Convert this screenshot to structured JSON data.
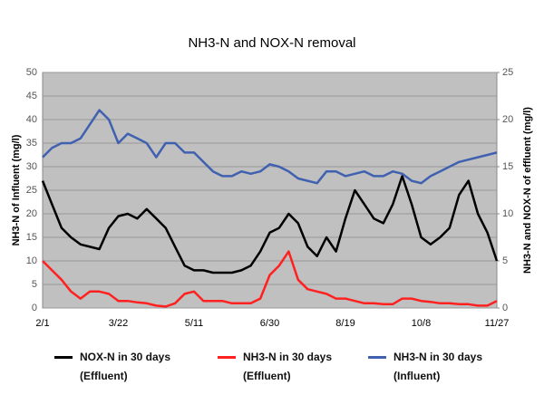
{
  "chart_data": {
    "type": "line",
    "title": "NH3-N and NOX-N removal",
    "y_label": "NH3-N of Influent (mg/l)",
    "y2_label": "NH3-N and NOX-N of effluent (mg/l)",
    "categories": [
      "2/1",
      null,
      null,
      null,
      null,
      null,
      null,
      null,
      "3/22",
      null,
      null,
      null,
      null,
      null,
      null,
      null,
      "5/11",
      null,
      null,
      null,
      null,
      null,
      null,
      null,
      "6/30",
      null,
      null,
      null,
      null,
      null,
      null,
      null,
      "8/19",
      null,
      null,
      null,
      null,
      null,
      null,
      null,
      "10/8",
      null,
      null,
      null,
      null,
      null,
      null,
      null,
      "11/27"
    ],
    "ylim": [
      0,
      50
    ],
    "yticks": [
      0,
      5,
      10,
      15,
      20,
      25,
      30,
      35,
      40,
      45,
      50
    ],
    "y2lim": [
      0,
      25
    ],
    "y2ticks": [
      0,
      5,
      10,
      15,
      20,
      25
    ],
    "grid": true,
    "legend": "bottom",
    "series": [
      {
        "name": "NOX-N in 30 days\n(Effluent)",
        "color": "#000000",
        "axis": "y2",
        "values": [
          13.5,
          11,
          8.5,
          7.5,
          6.75,
          6.5,
          6.25,
          8.5,
          9.75,
          10,
          9.5,
          10.5,
          9.5,
          8.5,
          6.5,
          4.5,
          4,
          4,
          3.75,
          3.75,
          3.75,
          4,
          4.5,
          6,
          8,
          8.5,
          10,
          9,
          6.5,
          5.5,
          7.5,
          6,
          9.5,
          12.5,
          11,
          9.5,
          9,
          11,
          14,
          11,
          7.5,
          6.75,
          7.5,
          8.5,
          12,
          13.5,
          10,
          8,
          5
        ]
      },
      {
        "name": "NH3-N in 30 days\n(Effluent)",
        "color": "#ff2020",
        "axis": "y2",
        "values": [
          5,
          4,
          3,
          1.75,
          1,
          1.75,
          1.75,
          1.5,
          0.75,
          0.75,
          0.6,
          0.5,
          0.25,
          0.15,
          0.5,
          1.5,
          1.75,
          0.75,
          0.75,
          0.75,
          0.5,
          0.5,
          0.5,
          1,
          3.5,
          4.5,
          6,
          3,
          2,
          1.75,
          1.5,
          1,
          1,
          0.75,
          0.5,
          0.5,
          0.4,
          0.4,
          1,
          1,
          0.75,
          0.65,
          0.5,
          0.5,
          0.4,
          0.4,
          0.25,
          0.25,
          0.75
        ]
      },
      {
        "name": "NH3-N in 30 days\n(Influent)",
        "color": "#4060b0",
        "axis": "y",
        "values": [
          32,
          34,
          35,
          35,
          36,
          39,
          42,
          40,
          35,
          37,
          36,
          35,
          32,
          35,
          35,
          33,
          33,
          31,
          29,
          28,
          28,
          29,
          28.5,
          29,
          30.5,
          30,
          29,
          27.5,
          27,
          26.5,
          29,
          29,
          28,
          28.5,
          29,
          28,
          28,
          29,
          28.5,
          27,
          26.5,
          28,
          29,
          30,
          31,
          31.5,
          32,
          32.5,
          33
        ]
      }
    ]
  }
}
